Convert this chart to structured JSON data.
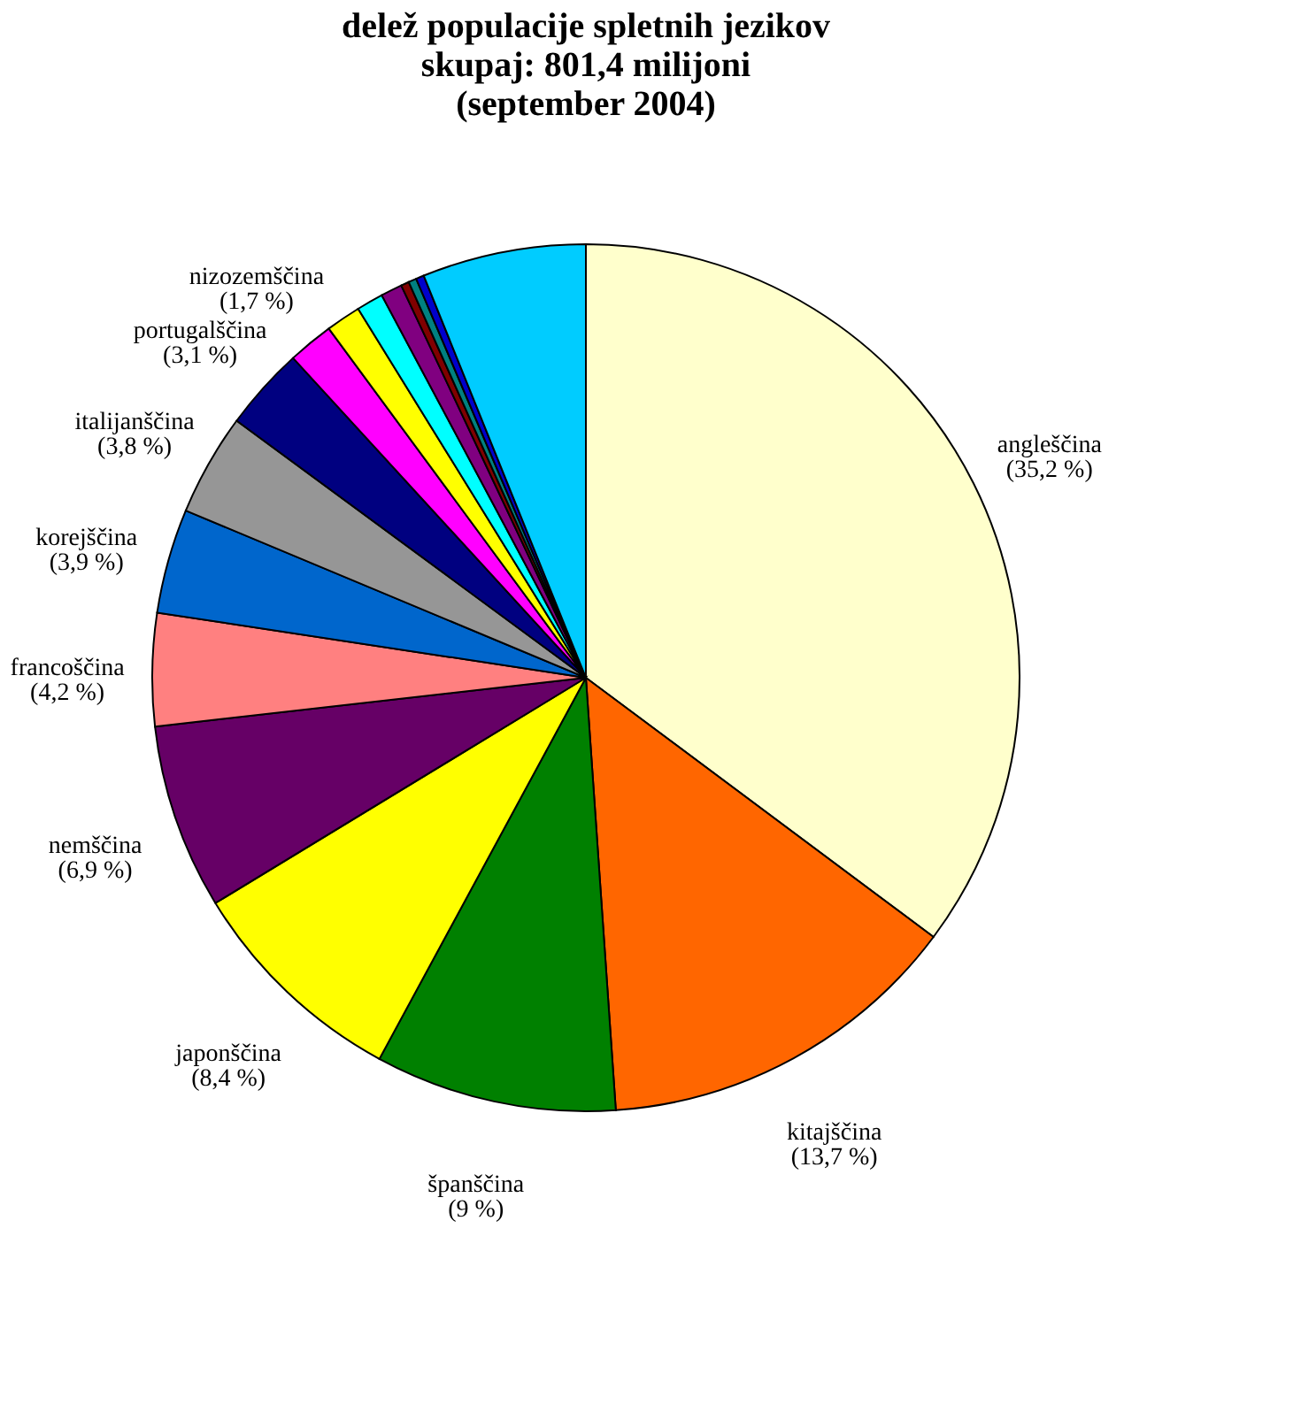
{
  "chart_data": {
    "type": "pie",
    "title": [
      "delež populacije spletnih jezikov",
      "skupaj: 801,4 milijoni",
      "(september 2004)"
    ],
    "categories": [
      "angleščina",
      "kitajščina",
      "španščina",
      "japonščina",
      "nemščina",
      "francoščina",
      "korejščina",
      "italijanščina",
      "portugalščina",
      "nizozemščina",
      null,
      null,
      null,
      null,
      null,
      null,
      null
    ],
    "values": [
      35.2,
      13.7,
      9,
      8.4,
      6.9,
      4.2,
      3.9,
      3.8,
      3.1,
      1.7,
      1.3,
      1.0,
      0.8,
      0.3,
      0.3,
      0.3,
      6.1
    ],
    "value_labels": [
      "(35,2 %)",
      "(13,7 %)",
      "(9 %)",
      "(8,4 %)",
      "(6,9 %)",
      "(4,2 %)",
      "(3,9 %)",
      "(3,8 %)",
      "(3,1 %)",
      "(1,7 %)",
      null,
      null,
      null,
      null,
      null,
      null,
      null
    ],
    "colors": [
      "#ffffcc",
      "#ff6600",
      "#008000",
      "#ffff00",
      "#660066",
      "#ff8080",
      "#0066cc",
      "#969696",
      "#000080",
      "#ff00ff",
      "#ffff00",
      "#00ffff",
      "#800080",
      "#800000",
      "#008080",
      "#0000cc",
      "#00ccff"
    ],
    "legend": false
  }
}
